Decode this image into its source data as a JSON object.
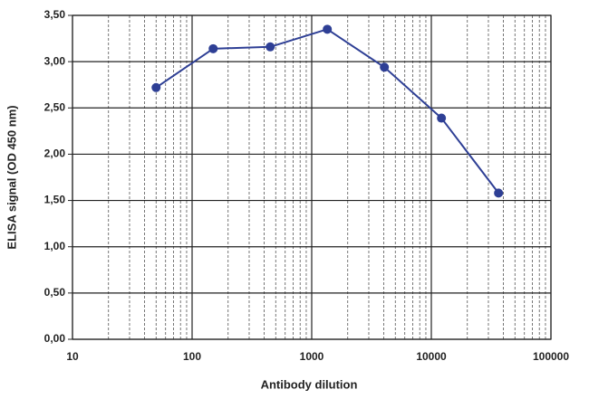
{
  "chart_data": {
    "type": "line",
    "x_label": "Antibody dilution",
    "y_label": "ELISA signal (OD 450 nm)",
    "x": [
      50,
      150,
      450,
      1350,
      4050,
      12150,
      36450
    ],
    "series": [
      {
        "color": "#2e3f95",
        "values": [
          2.72,
          3.14,
          3.16,
          3.35,
          2.94,
          2.39,
          1.58
        ]
      }
    ],
    "x_log": true,
    "xlim": [
      10,
      100000
    ],
    "xticks": [
      10,
      100,
      1000,
      10000,
      100000
    ],
    "ylim": [
      0,
      3.5
    ],
    "yticks": [
      {
        "value": 0,
        "label": "0,00"
      },
      {
        "value": 0.5,
        "label": "0,50"
      },
      {
        "value": 1,
        "label": "1,00"
      },
      {
        "value": 1.5,
        "label": "1,50"
      },
      {
        "value": 2,
        "label": "2,00"
      },
      {
        "value": 2.5,
        "label": "2,50"
      },
      {
        "value": 3,
        "label": "3,00"
      },
      {
        "value": 3.5,
        "label": "3,50"
      }
    ],
    "grid": true,
    "minor_grid": true
  }
}
